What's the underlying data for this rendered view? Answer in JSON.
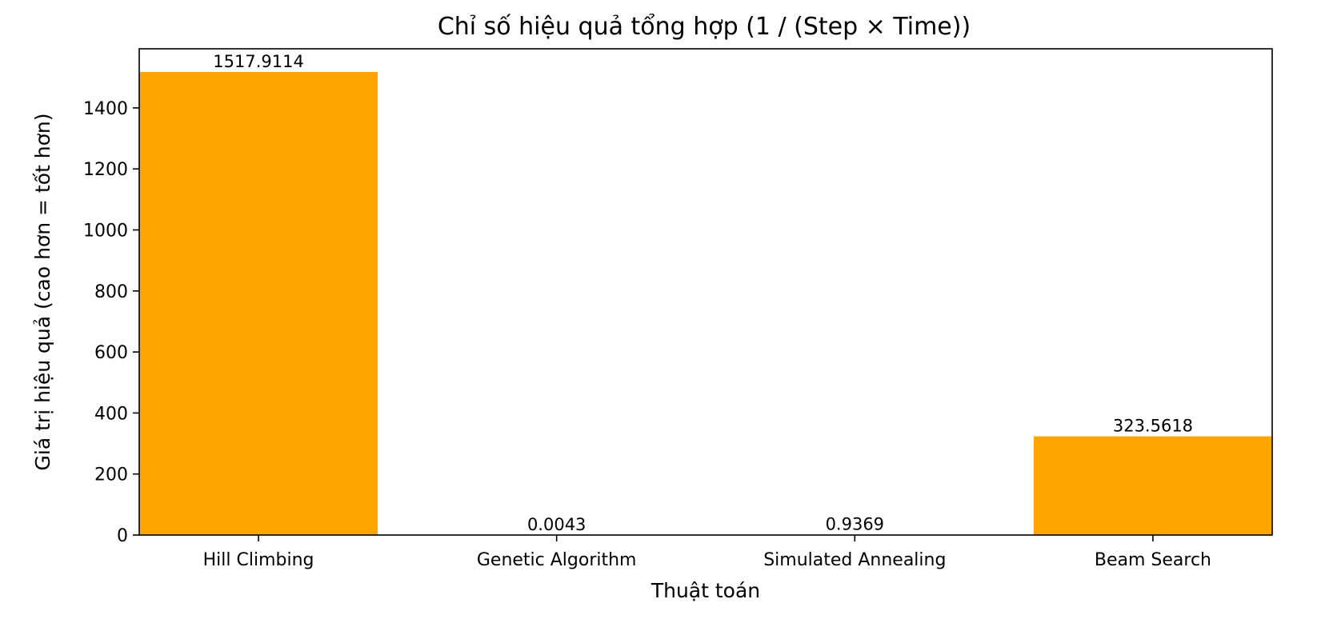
{
  "chart_data": {
    "type": "bar",
    "title": "Chỉ số hiệu quả tổng hợp (1 / (Step × Time))",
    "xlabel": "Thuật toán",
    "ylabel": "Giá trị hiệu quả (cao hơn = tốt hơn)",
    "categories": [
      "Hill Climbing",
      "Genetic Algorithm",
      "Simulated Annealing",
      "Beam Search"
    ],
    "values": [
      1517.9114,
      0.0043,
      0.9369,
      323.5618
    ],
    "value_labels": [
      "1517.9114",
      "0.0043",
      "0.9369",
      "323.5618"
    ],
    "ylim": [
      0,
      1593.8
    ],
    "yticks": [
      0,
      200,
      400,
      600,
      800,
      1000,
      1200,
      1400
    ],
    "grid": false,
    "bar_color": "#ffa500"
  }
}
